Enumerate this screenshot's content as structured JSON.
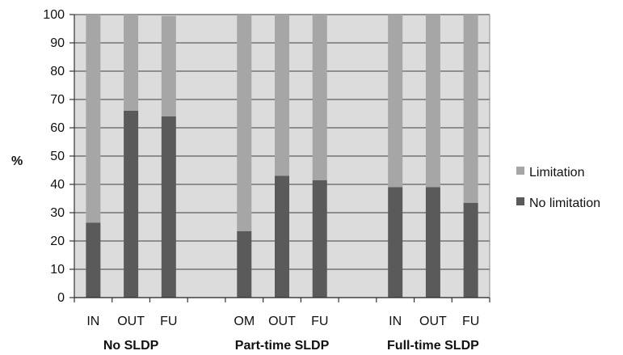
{
  "chart_data": {
    "type": "bar",
    "stacked": true,
    "ylabel": "%",
    "ylim": [
      0,
      100
    ],
    "yticks": [
      0,
      10,
      20,
      30,
      40,
      50,
      60,
      70,
      80,
      90,
      100
    ],
    "categories": [
      "IN",
      "OUT",
      "FU",
      "OM",
      "OUT",
      "FU",
      "IN",
      "OUT",
      "FU"
    ],
    "groups": [
      {
        "label": "No SLDP",
        "categories": [
          "IN",
          "OUT",
          "FU"
        ]
      },
      {
        "label": "Part-time SLDP",
        "categories": [
          "OM",
          "OUT",
          "FU"
        ]
      },
      {
        "label": "Full-time SLDP",
        "categories": [
          "IN",
          "OUT",
          "FU"
        ]
      }
    ],
    "series": [
      {
        "name": "No limitation",
        "values": [
          26.5,
          66,
          64,
          23.5,
          43,
          41.5,
          39,
          39,
          33.5
        ]
      },
      {
        "name": "Limitation",
        "values": [
          73.5,
          34,
          35.5,
          76.5,
          57,
          58.5,
          61,
          61,
          66.5
        ]
      }
    ],
    "legend": {
      "position": "right",
      "entries": [
        "Limitation",
        "No limitation"
      ]
    },
    "colors": {
      "No limitation": "#5a5a5a",
      "Limitation": "#a6a6a6",
      "plot_background": "#dcdcdc",
      "grid": "#5f5f5f"
    },
    "grid": true
  }
}
